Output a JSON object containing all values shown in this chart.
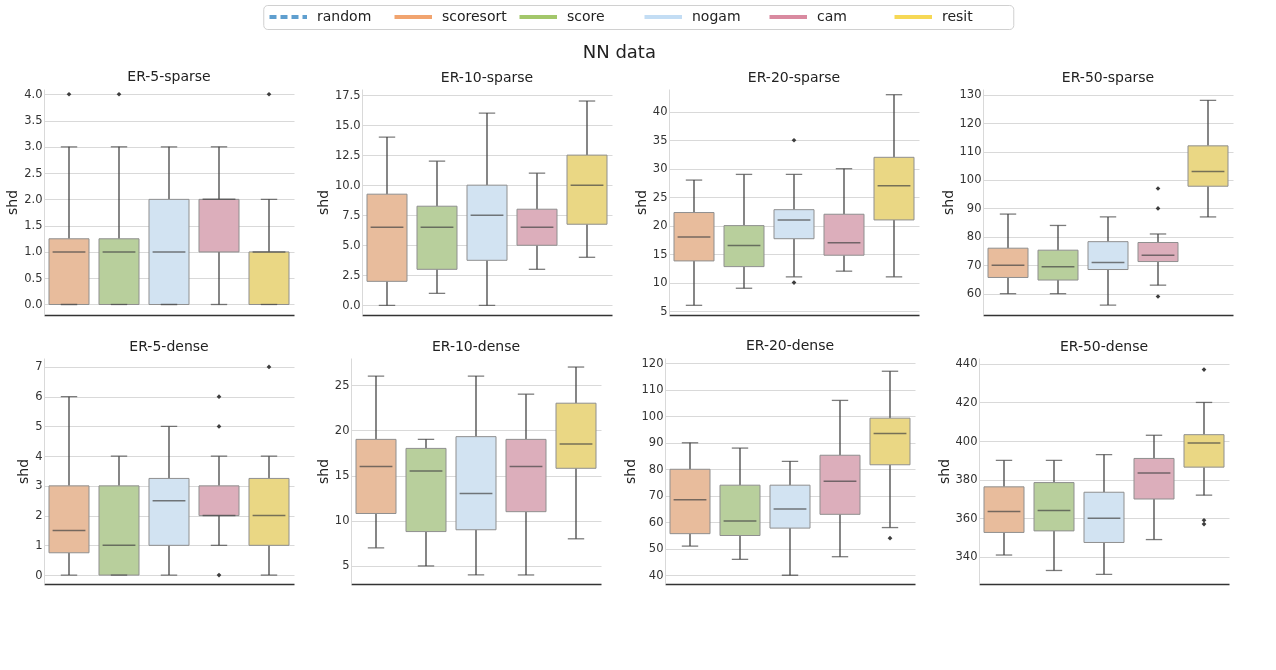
{
  "chart_data": [
    {
      "type": "other",
      "legend": "top",
      "annotations": [
        "NN data"
      ],
      "series": [
        {
          "name": "random",
          "color": "#5f9fcf",
          "line_style": "dashed"
        },
        {
          "name": "scoresort",
          "color": "#f1a46f"
        },
        {
          "name": "score",
          "color": "#a3c76b"
        },
        {
          "name": "nogam",
          "color": "#c3ddf4"
        },
        {
          "name": "cam",
          "color": "#d98aa0"
        },
        {
          "name": "resit",
          "color": "#f6d855"
        }
      ]
    },
    {
      "type": "box",
      "title": "ER-5-sparse",
      "ylabel": "shd",
      "grid": "y",
      "tick_labels": "y",
      "marker": "diamond",
      "categories": [
        null,
        null,
        null,
        null,
        null
      ],
      "colors": [
        "#e8bc9c",
        "#b8cf9c",
        "#d2e3f2",
        "#dcaebb",
        "#ead784"
      ],
      "ylim": [
        -0.2,
        4.1
      ],
      "yticks": [
        {
          "value": 0,
          "label": "0.0"
        },
        {
          "value": 0.5,
          "label": "0.5"
        },
        {
          "value": 1,
          "label": "1.0"
        },
        {
          "value": 1.5,
          "label": "1.5"
        },
        {
          "value": 2,
          "label": "2.0"
        },
        {
          "value": 2.5,
          "label": "2.5"
        },
        {
          "value": 3,
          "label": "3.0"
        },
        {
          "value": 3.5,
          "label": "3.5"
        },
        {
          "value": 4,
          "label": "4.0"
        }
      ],
      "boxes": [
        {
          "low": 0,
          "q1": 0,
          "median": 1,
          "q3": 1.25,
          "high": 3,
          "outliers": [
            4
          ]
        },
        {
          "low": 0,
          "q1": 0,
          "median": 1,
          "q3": 1.25,
          "high": 3,
          "outliers": [
            4
          ]
        },
        {
          "low": 0,
          "q1": 0,
          "median": 1,
          "q3": 2,
          "high": 3
        },
        {
          "low": 0,
          "q1": 1,
          "median": 2,
          "q3": 2,
          "high": 3
        },
        {
          "low": 0,
          "q1": 0,
          "median": 1,
          "q3": 1,
          "high": 2,
          "outliers": [
            4
          ]
        }
      ]
    },
    {
      "type": "box",
      "title": "ER-10-sparse",
      "ylabel": "shd",
      "grid": "y",
      "tick_labels": "y",
      "marker": "diamond",
      "categories": [
        null,
        null,
        null,
        null,
        null
      ],
      "colors": [
        "#e8bc9c",
        "#b8cf9c",
        "#d2e3f2",
        "#dcaebb",
        "#ead784"
      ],
      "ylim": [
        -0.8,
        18
      ],
      "yticks": [
        {
          "value": 0,
          "label": "0.0"
        },
        {
          "value": 2.5,
          "label": "2.5"
        },
        {
          "value": 5,
          "label": "5.0"
        },
        {
          "value": 7.5,
          "label": "7.5"
        },
        {
          "value": 10,
          "label": "10.0"
        },
        {
          "value": 12.5,
          "label": "12.5"
        },
        {
          "value": 15,
          "label": "15.0"
        },
        {
          "value": 17.5,
          "label": "17.5"
        }
      ],
      "boxes": [
        {
          "low": 0,
          "q1": 2,
          "median": 6.5,
          "q3": 9.25,
          "high": 14
        },
        {
          "low": 1,
          "q1": 3,
          "median": 6.5,
          "q3": 8.25,
          "high": 12
        },
        {
          "low": 0,
          "q1": 3.75,
          "median": 7.5,
          "q3": 10,
          "high": 16
        },
        {
          "low": 3,
          "q1": 5,
          "median": 6.5,
          "q3": 8,
          "high": 11
        },
        {
          "low": 4,
          "q1": 6.75,
          "median": 10,
          "q3": 12.5,
          "high": 17
        }
      ]
    },
    {
      "type": "box",
      "title": "ER-20-sparse",
      "ylabel": "shd",
      "grid": "y",
      "tick_labels": "y",
      "marker": "diamond",
      "categories": [
        null,
        null,
        null,
        null,
        null
      ],
      "colors": [
        "#e8bc9c",
        "#b8cf9c",
        "#d2e3f2",
        "#dcaebb",
        "#ead784"
      ],
      "ylim": [
        4.3,
        44
      ],
      "yticks": [
        5,
        10,
        15,
        20,
        25,
        30,
        35,
        40
      ],
      "boxes": [
        {
          "low": 6,
          "q1": 13.8,
          "median": 18,
          "q3": 22.3,
          "high": 28
        },
        {
          "low": 9,
          "q1": 12.8,
          "median": 16.5,
          "q3": 20,
          "high": 29
        },
        {
          "low": 11,
          "q1": 17.7,
          "median": 21,
          "q3": 22.8,
          "high": 29,
          "outliers": [
            35,
            10
          ]
        },
        {
          "low": 12,
          "q1": 14.8,
          "median": 17,
          "q3": 22,
          "high": 30
        },
        {
          "low": 11,
          "q1": 21,
          "median": 27,
          "q3": 32,
          "high": 43
        }
      ]
    },
    {
      "type": "box",
      "title": "ER-50-sparse",
      "ylabel": "shd",
      "grid": "y",
      "tick_labels": "y",
      "marker": "diamond",
      "categories": [
        null,
        null,
        null,
        null,
        null
      ],
      "colors": [
        "#e8bc9c",
        "#b8cf9c",
        "#d2e3f2",
        "#dcaebb",
        "#ead784"
      ],
      "ylim": [
        52.5,
        132
      ],
      "yticks": [
        60,
        70,
        80,
        90,
        100,
        110,
        120,
        130
      ],
      "boxes": [
        {
          "low": 60,
          "q1": 65.7,
          "median": 70,
          "q3": 76,
          "high": 88
        },
        {
          "low": 60,
          "q1": 64.8,
          "median": 69.5,
          "q3": 75.3,
          "high": 84
        },
        {
          "low": 56,
          "q1": 68.5,
          "median": 71,
          "q3": 78.3,
          "high": 87
        },
        {
          "low": 63,
          "q1": 71.3,
          "median": 73.5,
          "q3": 78,
          "high": 81,
          "outliers": [
            97,
            90,
            59
          ]
        },
        {
          "low": 87,
          "q1": 97.8,
          "median": 103,
          "q3": 112,
          "high": 128
        }
      ]
    },
    {
      "type": "box",
      "title": "ER-5-dense",
      "ylabel": "shd",
      "grid": "y",
      "tick_labels": "y",
      "marker": "diamond",
      "categories": [
        null,
        null,
        null,
        null,
        null
      ],
      "colors": [
        "#e8bc9c",
        "#b8cf9c",
        "#d2e3f2",
        "#dcaebb",
        "#ead784"
      ],
      "ylim": [
        -0.3,
        7.3
      ],
      "yticks": [
        0,
        1,
        2,
        3,
        4,
        5,
        6,
        7
      ],
      "boxes": [
        {
          "low": 0,
          "q1": 0.75,
          "median": 1.5,
          "q3": 3,
          "high": 6
        },
        {
          "low": 0,
          "q1": 0,
          "median": 1,
          "q3": 3,
          "high": 4
        },
        {
          "low": 0,
          "q1": 1,
          "median": 2.5,
          "q3": 3.25,
          "high": 5
        },
        {
          "low": 1,
          "q1": 2,
          "median": 2,
          "q3": 3,
          "high": 4,
          "outliers": [
            6,
            5,
            0
          ]
        },
        {
          "low": 0,
          "q1": 1,
          "median": 2,
          "q3": 3.25,
          "high": 4,
          "outliers": [
            7
          ]
        }
      ]
    },
    {
      "type": "box",
      "title": "ER-10-dense",
      "ylabel": "shd",
      "grid": "y",
      "tick_labels": "y",
      "marker": "diamond",
      "categories": [
        null,
        null,
        null,
        null,
        null
      ],
      "colors": [
        "#e8bc9c",
        "#b8cf9c",
        "#d2e3f2",
        "#dcaebb",
        "#ead784"
      ],
      "ylim": [
        3,
        28
      ],
      "yticks": [
        5,
        10,
        15,
        20,
        25
      ],
      "boxes": [
        {
          "low": 7,
          "q1": 10.8,
          "median": 16,
          "q3": 19,
          "high": 26
        },
        {
          "low": 5,
          "q1": 8.8,
          "median": 15.5,
          "q3": 18,
          "high": 19
        },
        {
          "low": 4,
          "q1": 9,
          "median": 13,
          "q3": 19.3,
          "high": 26
        },
        {
          "low": 4,
          "q1": 11,
          "median": 16,
          "q3": 19,
          "high": 24
        },
        {
          "low": 8,
          "q1": 15.8,
          "median": 18.5,
          "q3": 23,
          "high": 27
        }
      ]
    },
    {
      "type": "box",
      "title": "ER-20-dense",
      "ylabel": "shd",
      "grid": "y",
      "tick_labels": "y",
      "marker": "diamond",
      "categories": [
        null,
        null,
        null,
        null,
        null
      ],
      "colors": [
        "#e8bc9c",
        "#b8cf9c",
        "#d2e3f2",
        "#dcaebb",
        "#ead784"
      ],
      "ylim": [
        36.7,
        122
      ],
      "yticks": [
        40,
        50,
        60,
        70,
        80,
        90,
        100,
        110,
        120
      ],
      "boxes": [
        {
          "low": 51,
          "q1": 55.7,
          "median": 68.5,
          "q3": 80,
          "high": 90
        },
        {
          "low": 46,
          "q1": 55,
          "median": 60.5,
          "q3": 74,
          "high": 88
        },
        {
          "low": 40,
          "q1": 57.8,
          "median": 65,
          "q3": 74,
          "high": 83
        },
        {
          "low": 47,
          "q1": 63,
          "median": 75.5,
          "q3": 85.3,
          "high": 106
        },
        {
          "low": 58,
          "q1": 81.7,
          "median": 93.5,
          "q3": 99.3,
          "high": 117,
          "outliers": [
            54
          ]
        }
      ]
    },
    {
      "type": "box",
      "title": "ER-50-dense",
      "ylabel": "shd",
      "grid": "y",
      "tick_labels": "y",
      "marker": "diamond",
      "categories": [
        null,
        null,
        null,
        null,
        null
      ],
      "colors": [
        "#e8bc9c",
        "#b8cf9c",
        "#d2e3f2",
        "#dcaebb",
        "#ead784"
      ],
      "ylim": [
        326,
        443
      ],
      "yticks": [
        340,
        360,
        380,
        400,
        420,
        440
      ],
      "boxes": [
        {
          "low": 341,
          "q1": 352.7,
          "median": 363.5,
          "q3": 376.3,
          "high": 390
        },
        {
          "low": 333,
          "q1": 353.5,
          "median": 364,
          "q3": 378.5,
          "high": 390
        },
        {
          "low": 331,
          "q1": 347.5,
          "median": 360,
          "q3": 373.5,
          "high": 393
        },
        {
          "low": 349,
          "q1": 370,
          "median": 383.5,
          "q3": 391,
          "high": 403
        },
        {
          "low": 372,
          "q1": 386.5,
          "median": 399,
          "q3": 403.3,
          "high": 420,
          "outliers": [
            437,
            359,
            357
          ]
        }
      ]
    }
  ]
}
